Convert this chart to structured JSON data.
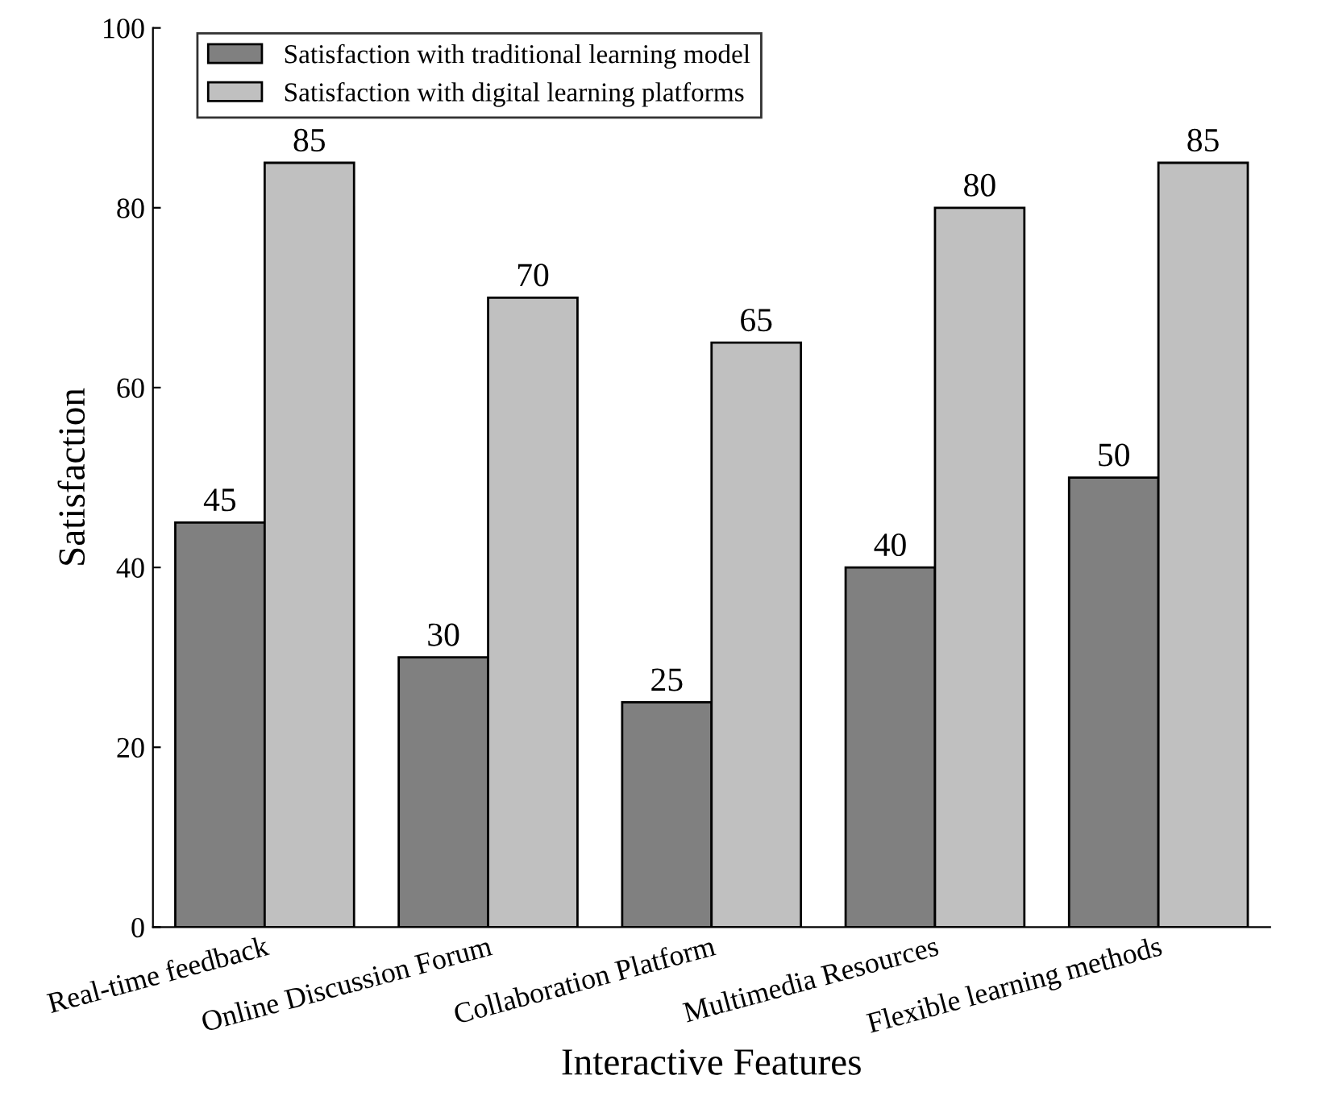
{
  "chart_data": {
    "type": "bar",
    "xlabel": "Interactive Features",
    "ylabel": "Satisfaction",
    "categories": [
      "Real-time feedback",
      "Online Discussion Forum",
      "Collaboration Platform",
      "Multimedia Resources",
      "Flexible learning methods"
    ],
    "series": [
      {
        "name": "Satisfaction with traditional learning model",
        "color": "#808080",
        "values": [
          45,
          30,
          25,
          40,
          50
        ]
      },
      {
        "name": "Satisfaction with digital learning platforms",
        "color": "#c0c0c0",
        "values": [
          85,
          70,
          65,
          80,
          85
        ]
      }
    ],
    "ylim": [
      0,
      100
    ],
    "yticks": [
      0,
      20,
      40,
      60,
      80,
      100
    ],
    "grid": false,
    "legend": "top left",
    "data_labels": true
  }
}
